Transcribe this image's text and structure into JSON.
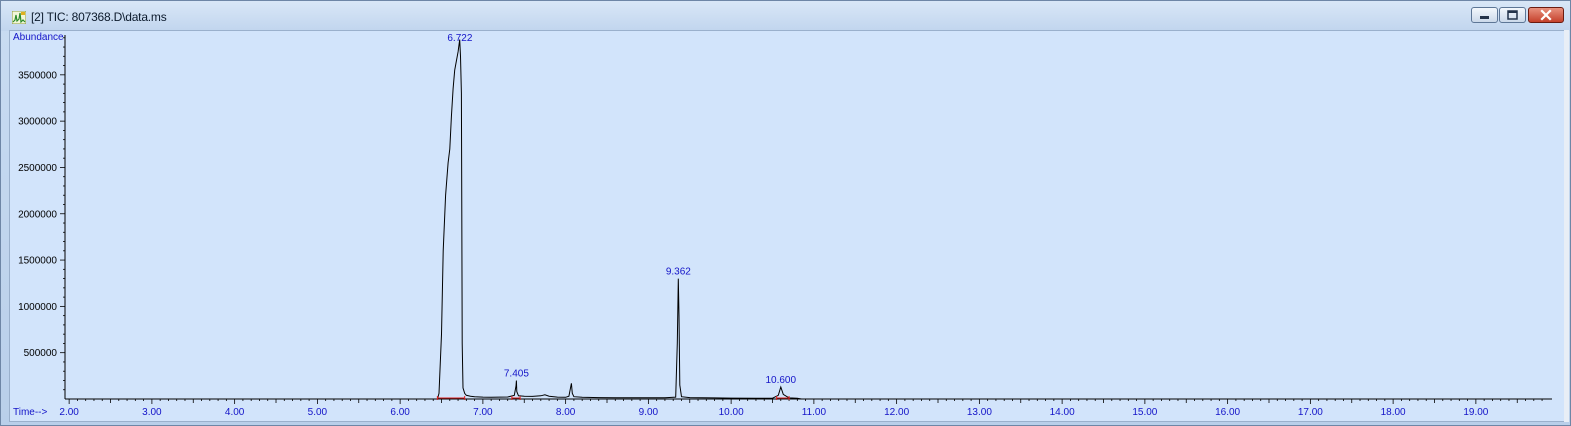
{
  "window": {
    "title": "[2] TIC: 807368.D\\data.ms",
    "icon": "chromatogram-app-icon",
    "buttons": [
      "minimize-icon",
      "maximize-icon",
      "close-icon"
    ]
  },
  "colors": {
    "plot_background": "#d2e4fb",
    "trace": "#000000",
    "label": "#1414c8",
    "baseline_marker": "#e02020"
  },
  "chart_data": {
    "type": "line",
    "ylabel": "Abundance",
    "xlabel": "Time-->",
    "xlim": [
      1.95,
      19.92
    ],
    "ylim": [
      0,
      3930000
    ],
    "x_ticks": [
      "2.00",
      "3.00",
      "4.00",
      "5.00",
      "6.00",
      "7.00",
      "8.00",
      "9.00",
      "10.00",
      "11.00",
      "12.00",
      "13.00",
      "14.00",
      "15.00",
      "16.00",
      "17.00",
      "18.00",
      "19.00"
    ],
    "y_ticks": [
      "500000",
      "1000000",
      "1500000",
      "2000000",
      "2500000",
      "3000000",
      "3500000"
    ],
    "peak_labels": [
      {
        "text": "6.722",
        "x": 6.722,
        "y": 3820000
      },
      {
        "text": "7.405",
        "x": 7.405,
        "y": 200000
      },
      {
        "text": "9.362",
        "x": 9.362,
        "y": 1300000
      },
      {
        "text": "10.600",
        "x": 10.6,
        "y": 130000
      }
    ],
    "series": [
      {
        "x": [
          6.45,
          6.47,
          6.5,
          6.52,
          6.55,
          6.58,
          6.6,
          6.62,
          6.64,
          6.66,
          6.68,
          6.7,
          6.72,
          6.73,
          6.74,
          6.745,
          6.75,
          6.76,
          6.78,
          6.8,
          6.85,
          6.9,
          7.0,
          7.1,
          7.2,
          7.3,
          7.38,
          7.4,
          7.405,
          7.41,
          7.43,
          7.5,
          7.6,
          7.7,
          7.75,
          7.8,
          7.9,
          8.0,
          8.04,
          8.07,
          8.08,
          8.1,
          8.2,
          8.4,
          8.6,
          8.8,
          9.0,
          9.2,
          9.33,
          9.35,
          9.362,
          9.37,
          9.38,
          9.4,
          9.5,
          9.8,
          10.0,
          10.3,
          10.5,
          10.57,
          10.6,
          10.63,
          10.7,
          10.8,
          10.85
        ],
        "values": [
          0,
          60000,
          700000,
          1600000,
          2200000,
          2550000,
          2700000,
          3050000,
          3350000,
          3550000,
          3650000,
          3750000,
          3880000,
          3700000,
          3300000,
          2000000,
          600000,
          120000,
          60000,
          40000,
          30000,
          25000,
          20000,
          18000,
          20000,
          22000,
          40000,
          140000,
          200000,
          80000,
          35000,
          30000,
          28000,
          35000,
          45000,
          30000,
          20000,
          18000,
          30000,
          170000,
          60000,
          25000,
          18000,
          15000,
          14000,
          13000,
          13000,
          14000,
          20000,
          600000,
          1300000,
          900000,
          150000,
          25000,
          15000,
          12000,
          10000,
          9000,
          9000,
          40000,
          130000,
          50000,
          12000,
          8000,
          0
        ]
      }
    ]
  }
}
